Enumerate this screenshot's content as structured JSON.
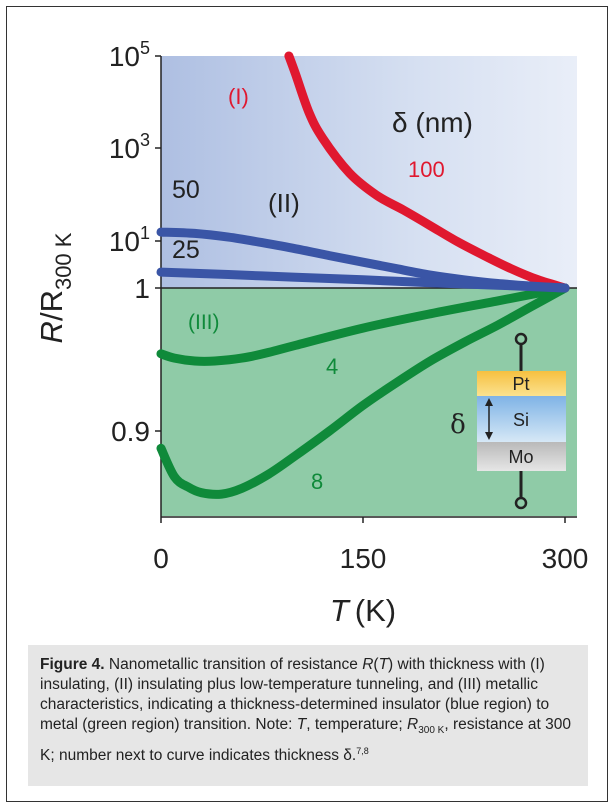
{
  "colors": {
    "blue_region": "#cfdcee",
    "green_region": "#8fcba7",
    "red": "#e0182f",
    "blue": "#3a55a6",
    "green": "#0f8a3a",
    "pt_layer": "#f4b63a",
    "si_layer": "#a6cfee",
    "mo_layer": "#cfcfcf"
  },
  "chart_data": {
    "type": "line",
    "xlabel_var": "T",
    "xlabel_unit": "(K)",
    "ylabel_var": "R",
    "ylabel_rest": "/R",
    "ylabel_sub": "300 K",
    "x_ticks": [
      "0",
      "150",
      "300"
    ],
    "xlim": [
      0,
      310
    ],
    "upper_panel": {
      "scale": "log",
      "ylim": [
        1,
        100000
      ],
      "y_ticks": [
        {
          "base": "10",
          "exp": "5"
        },
        {
          "base": "10",
          "exp": "3"
        },
        {
          "base": "10",
          "exp": "1"
        }
      ],
      "y_bottom_label": "1",
      "series": [
        {
          "name": "100",
          "color": "red",
          "x": [
            95,
            100,
            110,
            120,
            140,
            160,
            180,
            200,
            220,
            240,
            260,
            280,
            300
          ],
          "y": [
            100000,
            40000,
            6000,
            1700,
            300,
            100,
            48,
            22,
            10,
            5,
            2.6,
            1.5,
            1
          ]
        },
        {
          "name": "50",
          "color": "blue",
          "x": [
            0,
            25,
            50,
            75,
            100,
            125,
            150,
            175,
            200,
            225,
            250,
            275,
            300
          ],
          "y": [
            16,
            15,
            12.5,
            9.5,
            7,
            5,
            3.6,
            2.6,
            1.9,
            1.5,
            1.25,
            1.1,
            1
          ]
        },
        {
          "name": "25",
          "color": "blue",
          "x": [
            0,
            50,
            100,
            150,
            200,
            250,
            300
          ],
          "y": [
            2.2,
            1.95,
            1.7,
            1.5,
            1.3,
            1.15,
            1
          ]
        }
      ]
    },
    "lower_panel": {
      "scale": "linear",
      "ylim": [
        0.84,
        1.0
      ],
      "y_ticks": [
        "0.9"
      ],
      "series": [
        {
          "name": "4",
          "color": "green",
          "x": [
            0,
            10,
            25,
            40,
            60,
            80,
            100,
            150,
            200,
            250,
            300
          ],
          "y": [
            0.954,
            0.951,
            0.949,
            0.949,
            0.951,
            0.955,
            0.96,
            0.972,
            0.982,
            0.991,
            1.0
          ]
        },
        {
          "name": "8",
          "color": "green",
          "x": [
            0,
            10,
            20,
            30,
            45,
            60,
            80,
            100,
            125,
            150,
            175,
            200,
            225,
            250,
            275,
            300
          ],
          "y": [
            0.888,
            0.868,
            0.861,
            0.857,
            0.856,
            0.86,
            0.87,
            0.883,
            0.9,
            0.918,
            0.934,
            0.949,
            0.962,
            0.974,
            0.987,
            1.0
          ]
        }
      ]
    },
    "annotations": {
      "region_I": "(I)",
      "region_II": "(II)",
      "region_III": "(III)",
      "delta_unit": "δ (nm)",
      "label_100": "100",
      "label_50": "50",
      "label_25": "25",
      "label_4": "4",
      "label_8": "8"
    },
    "inset": {
      "layers": [
        "Pt",
        "Si",
        "Mo"
      ],
      "delta_label": "δ"
    }
  },
  "caption": {
    "figure_label": "Figure 4.",
    "p1": " Nanometallic transition of resistance ",
    "R": "R",
    "p2": "(",
    "T1": "T",
    "p3": ") with thickness with (I) insulating, (II) insulating plus low-temperature tunneling, and (III) metallic characteristics, indicating a thickness-determined insulator (blue region) to metal (green region) transition. Note: ",
    "T2": "T",
    "p4": ", temperature; ",
    "R2": "R",
    "sub300": "300 K",
    "p5": ", resistance at 300 K; number next to curve indicates thickness δ.",
    "sup": "7,8"
  }
}
